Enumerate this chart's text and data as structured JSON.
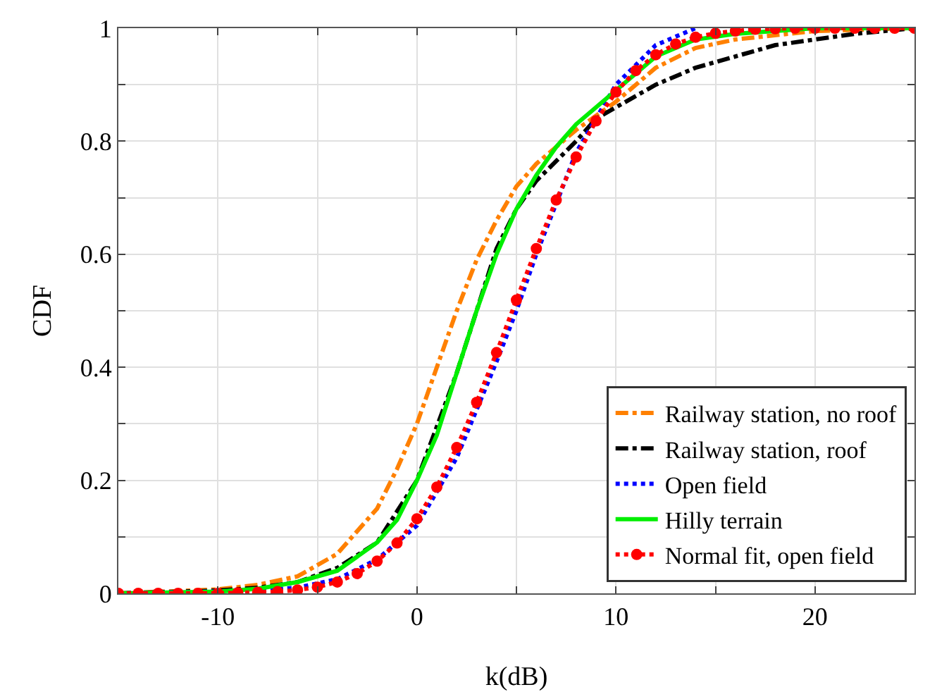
{
  "chart_data": {
    "type": "line",
    "xlabel": "k(dB)",
    "ylabel": "CDF",
    "xlim": [
      -15,
      25
    ],
    "ylim": [
      0,
      1
    ],
    "xticks": [
      {
        "value": -15,
        "label": null
      },
      -10,
      {
        "value": -5,
        "label": null
      },
      0,
      {
        "value": 5,
        "label": null
      },
      10,
      {
        "value": 15,
        "label": null
      },
      20,
      {
        "value": 25,
        "label": null
      }
    ],
    "yticks": [
      0,
      {
        "value": 0.1,
        "label": null
      },
      0.2,
      {
        "value": 0.3,
        "label": null
      },
      0.4,
      {
        "value": 0.5,
        "label": null
      },
      0.6,
      {
        "value": 0.7,
        "label": null
      },
      0.8,
      {
        "value": 0.9,
        "label": null
      },
      1
    ],
    "grid": true,
    "legend": "bottom right",
    "series": [
      {
        "name": "Railway station, no roof",
        "color": "#ff8000",
        "line_style": "dashdot",
        "marker": "none",
        "x": [
          -15,
          -10,
          -8,
          -6,
          -4,
          -2,
          -1,
          0,
          1,
          2,
          3,
          4,
          5,
          6,
          8,
          10,
          12,
          14,
          16,
          20,
          25
        ],
        "values": [
          0,
          0.007,
          0.015,
          0.03,
          0.07,
          0.15,
          0.22,
          0.3,
          0.4,
          0.5,
          0.59,
          0.66,
          0.72,
          0.76,
          0.82,
          0.87,
          0.93,
          0.965,
          0.98,
          0.995,
          1
        ]
      },
      {
        "name": "Railway station, roof",
        "color": "#000000",
        "line_style": "dashdot",
        "marker": "none",
        "x": [
          -15,
          -10,
          -8,
          -6,
          -4,
          -2,
          0,
          2,
          3,
          4,
          5,
          6,
          8,
          9,
          10,
          12,
          14,
          16,
          18,
          20,
          22,
          25
        ],
        "values": [
          0,
          0.005,
          0.01,
          0.02,
          0.045,
          0.09,
          0.2,
          0.39,
          0.5,
          0.61,
          0.68,
          0.73,
          0.8,
          0.84,
          0.86,
          0.9,
          0.93,
          0.95,
          0.97,
          0.98,
          0.99,
          1
        ]
      },
      {
        "name": "Open field",
        "color": "#0000ff",
        "line_style": "dotted",
        "marker": "none",
        "x": [
          -15,
          -8,
          -6,
          -4,
          -2,
          0,
          2,
          4,
          5,
          6,
          8,
          10,
          12,
          14
        ],
        "values": [
          0,
          0.005,
          0.01,
          0.025,
          0.06,
          0.12,
          0.24,
          0.41,
          0.5,
          0.6,
          0.78,
          0.9,
          0.97,
          1
        ]
      },
      {
        "name": "Hilly terrain",
        "color": "#00ee00",
        "line_style": "solid",
        "marker": "none",
        "x": [
          -15,
          -10,
          -8,
          -6,
          -4,
          -2,
          -1,
          0,
          1,
          2,
          3,
          4,
          5,
          6,
          7,
          8,
          10,
          12,
          14,
          16,
          20,
          25
        ],
        "values": [
          0,
          0.003,
          0.008,
          0.02,
          0.04,
          0.09,
          0.13,
          0.2,
          0.28,
          0.39,
          0.5,
          0.6,
          0.68,
          0.74,
          0.79,
          0.83,
          0.89,
          0.95,
          0.98,
          0.99,
          1,
          1
        ]
      },
      {
        "name": "Normal fit, open field",
        "color": "#ff0000",
        "line_style": "dotted",
        "marker": "circle",
        "x": [
          -15,
          -14,
          -13,
          -12,
          -11,
          -10,
          -9,
          -8,
          -7,
          -6,
          -5,
          -4,
          -3,
          -2,
          -1,
          0,
          1,
          2,
          3,
          4,
          5,
          6,
          7,
          8,
          9,
          10,
          11,
          12,
          13,
          14,
          15,
          16,
          17,
          18,
          19,
          20,
          21,
          22,
          23,
          24,
          25
        ],
        "values": [
          0,
          0,
          0,
          0,
          0,
          0,
          0.001,
          0.002,
          0.003,
          0.006,
          0.011,
          0.02,
          0.035,
          0.057,
          0.089,
          0.132,
          0.188,
          0.258,
          0.338,
          0.426,
          0.519,
          0.61,
          0.696,
          0.772,
          0.836,
          0.887,
          0.925,
          0.953,
          0.972,
          0.984,
          0.991,
          0.995,
          0.998,
          0.999,
          1,
          1,
          1,
          1,
          1,
          1,
          1
        ]
      }
    ]
  }
}
